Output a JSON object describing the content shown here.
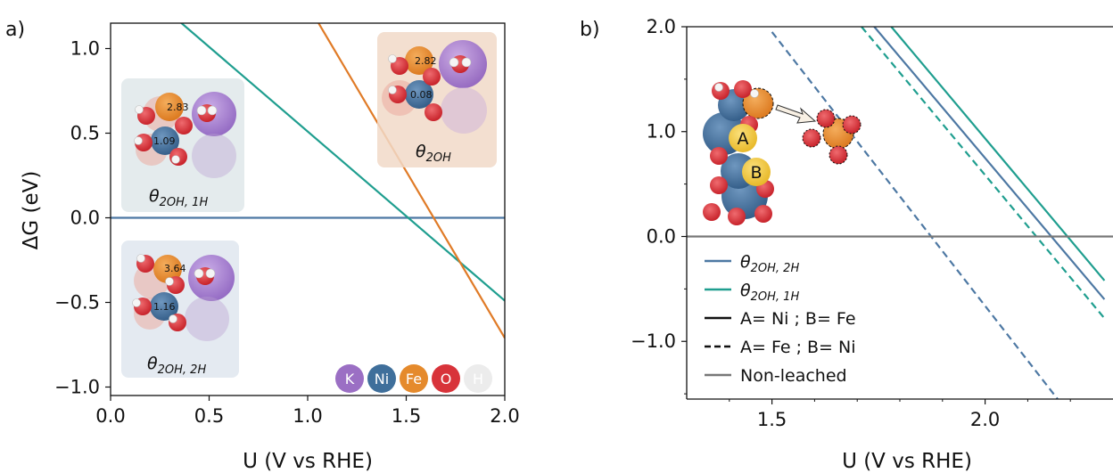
{
  "panel_labels": [
    "a)",
    "b)"
  ],
  "atom_legend": [
    {
      "label": "K",
      "color": "#9b6fc4"
    },
    {
      "label": "Ni",
      "color": "#3f6f9b"
    },
    {
      "label": "Fe",
      "color": "#e58a2c"
    },
    {
      "label": "O",
      "color": "#d8333a"
    },
    {
      "label": "H",
      "color": "#e4e4e4"
    }
  ],
  "insets_a": [
    {
      "state": "θ",
      "sub": "2OH, 1H",
      "values": [
        "2.83",
        "1.09"
      ]
    },
    {
      "state": "θ",
      "sub": "2OH",
      "values": [
        "2.82",
        "0.08"
      ]
    },
    {
      "state": "θ",
      "sub": "2OH, 2H",
      "values": [
        "3.64",
        "1.16"
      ]
    }
  ],
  "inset_b_labels": [
    "A",
    "B"
  ],
  "chart_data": [
    {
      "type": "line",
      "panel": "a)",
      "xlabel": "U (V vs RHE)",
      "ylabel": "ΔG (eV)",
      "xlim": [
        0.0,
        2.0
      ],
      "ylim": [
        -1.05,
        1.15
      ],
      "xticks": [
        0.0,
        0.5,
        1.0,
        1.5,
        2.0
      ],
      "xtick_labels": [
        "0.0",
        "0.5",
        "1.0",
        "1.5",
        "2.0"
      ],
      "yticks": [
        -1.0,
        -0.5,
        0.0,
        0.5,
        1.0
      ],
      "ytick_labels": [
        "−1.0",
        "−0.5",
        "0.0",
        "0.5",
        "1.0"
      ],
      "series": [
        {
          "color": "#4d78a3",
          "x": [
            0.0,
            2.0
          ],
          "y": [
            0.0,
            0.0
          ]
        },
        {
          "color": "#1f9e8f",
          "x": [
            0.35,
            2.0
          ],
          "y": [
            1.16,
            -0.49
          ]
        },
        {
          "color": "#e07b27",
          "x": [
            1.05,
            2.0
          ],
          "y": [
            1.16,
            -0.71
          ]
        }
      ]
    },
    {
      "type": "line",
      "panel": "b)",
      "xlabel": "U (V vs RHE)",
      "ylabel": "",
      "xlim": [
        1.3,
        2.3
      ],
      "ylim": [
        -1.55,
        2.0
      ],
      "xticks": [
        1.5,
        2.0
      ],
      "xtick_labels": [
        "1.5",
        "2.0"
      ],
      "yticks": [
        -1.0,
        0.0,
        1.0,
        2.0
      ],
      "ytick_labels": [
        "−1.0",
        "0.0",
        "1.0",
        "2.0"
      ],
      "legend_position": "bottom-left",
      "series": [
        {
          "name": "θ",
          "name_sub": "2OH, 2H",
          "color": "#4d78a3",
          "dash": "solid",
          "x": [
            1.74,
            2.28
          ],
          "y": [
            2.0,
            -0.6
          ]
        },
        {
          "name": "θ",
          "name_sub": "2OH, 1H",
          "color": "#1f9e8f",
          "dash": "solid",
          "x": [
            1.78,
            2.28
          ],
          "y": [
            2.0,
            -0.42
          ]
        },
        {
          "color": "#4d78a3",
          "dash": "dashed",
          "x": [
            1.5,
            2.17
          ],
          "y": [
            1.95,
            -1.55
          ]
        },
        {
          "color": "#1f9e8f",
          "dash": "dashed",
          "x": [
            1.71,
            2.28
          ],
          "y": [
            2.0,
            -0.78
          ]
        },
        {
          "name": "Non-leached",
          "color": "#777777",
          "dash": "solid",
          "x": [
            1.3,
            2.3
          ],
          "y": [
            0.0,
            0.0
          ]
        }
      ],
      "style_legend": [
        {
          "label": "A= Ni ; B= Fe",
          "dash": "solid"
        },
        {
          "label": "A= Fe ; B= Ni",
          "dash": "dashed"
        }
      ]
    }
  ]
}
